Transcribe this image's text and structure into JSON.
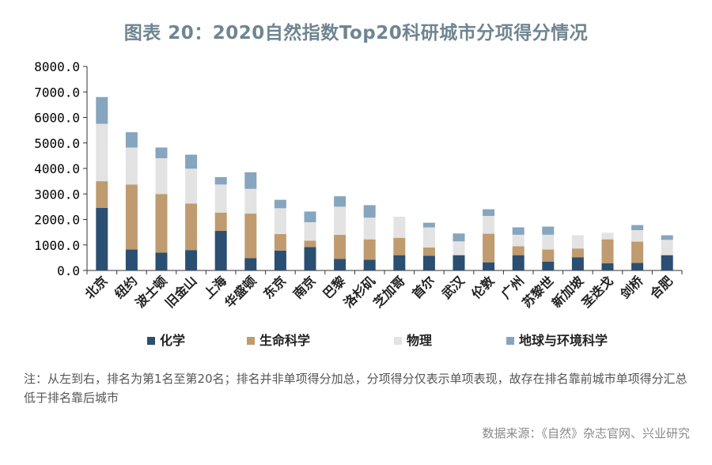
{
  "title": "图表 20：2020自然指数Top20科研城市分项得分情况",
  "note": "注：从左到右，排名为第1名至第20名；排名并非单项得分加总，分项得分仅表示单项表现，故存在排名靠前城市单项得分汇总低于排名靠后城市",
  "source": "数据来源：《自然》杂志官网、兴业研究",
  "chart_data": {
    "type": "bar",
    "stacked": true,
    "categories": [
      "北京",
      "纽约",
      "波士顿",
      "旧金山",
      "上海",
      "华盛顿",
      "东京",
      "南京",
      "巴黎",
      "洛杉矶",
      "芝加哥",
      "首尔",
      "武汉",
      "伦敦",
      "广州",
      "苏黎世",
      "新加坡",
      "圣迭戈",
      "剑桥",
      "合肥"
    ],
    "series": [
      {
        "name": "化学",
        "color": "#2b4f72",
        "values": [
          2450,
          820,
          700,
          800,
          1550,
          480,
          780,
          920,
          450,
          420,
          600,
          580,
          600,
          320,
          600,
          350,
          520,
          280,
          300,
          600
        ]
      },
      {
        "name": "生命科学",
        "color": "#bf9b6f",
        "values": [
          1050,
          2550,
          2300,
          1820,
          720,
          1750,
          650,
          250,
          950,
          800,
          680,
          320,
          0,
          1120,
          350,
          470,
          340,
          940,
          830,
          0
        ]
      },
      {
        "name": "物理",
        "color": "#e3e3e3",
        "values": [
          2250,
          1450,
          1400,
          1370,
          1100,
          970,
          1010,
          720,
          1100,
          850,
          830,
          790,
          540,
          700,
          450,
          580,
          520,
          260,
          450,
          600
        ]
      },
      {
        "name": "地球与环境科学",
        "color": "#86a5be",
        "values": [
          1050,
          600,
          420,
          550,
          290,
          650,
          330,
          420,
          410,
          490,
          0,
          180,
          310,
          260,
          290,
          320,
          0,
          0,
          200,
          180
        ]
      }
    ],
    "ylim": [
      0,
      8000
    ],
    "yticks": [
      "0.0",
      "1000.0",
      "2000.0",
      "3000.0",
      "4000.0",
      "5000.0",
      "6000.0",
      "7000.0",
      "8000.0"
    ],
    "grid": false,
    "legend_position": "bottom"
  }
}
